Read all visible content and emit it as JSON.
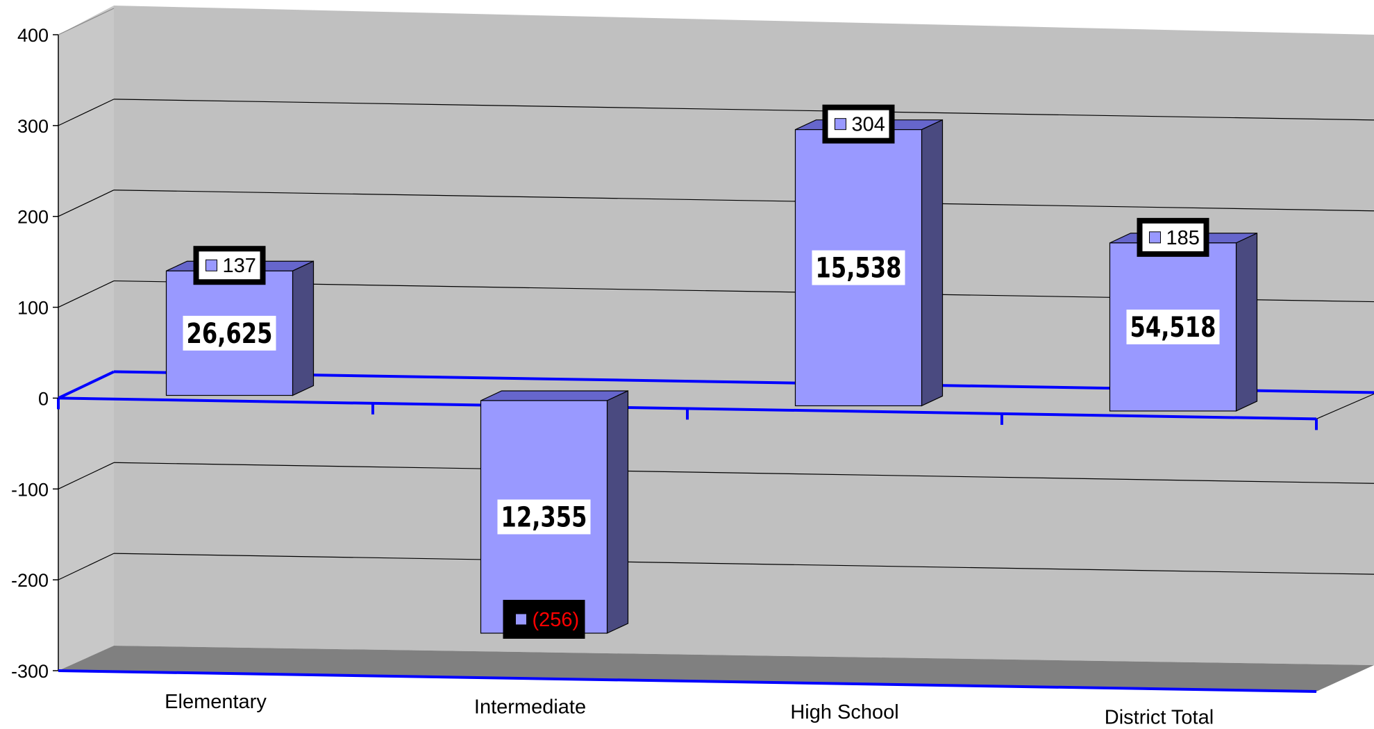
{
  "chart_data": {
    "type": "bar",
    "categories": [
      "Elementary",
      "Intermediate",
      "High School",
      "District Total"
    ],
    "values": [
      137,
      -256,
      304,
      185
    ],
    "value_labels": [
      "137",
      "(256)",
      "304",
      "185"
    ],
    "inner_labels": [
      "26,625",
      "12,355",
      "15,538",
      "54,518"
    ],
    "ylim": [
      -300,
      400
    ],
    "yticks": [
      "400",
      "300",
      "200",
      "100",
      "0",
      "-100",
      "-200",
      "-300"
    ],
    "title": "",
    "xlabel": "",
    "ylabel": "",
    "grid": true,
    "projection": "3d",
    "colors": {
      "bar_front": "#9999ff",
      "bar_top": "#6666cc",
      "bar_side": "#4a4a80",
      "wall": "#c0c0c0",
      "side_wall": "#c8c8c8",
      "floor": "#808080",
      "baseline": "#0000ff",
      "negative_label": "#ff0000",
      "positive_label": "#000000"
    }
  }
}
